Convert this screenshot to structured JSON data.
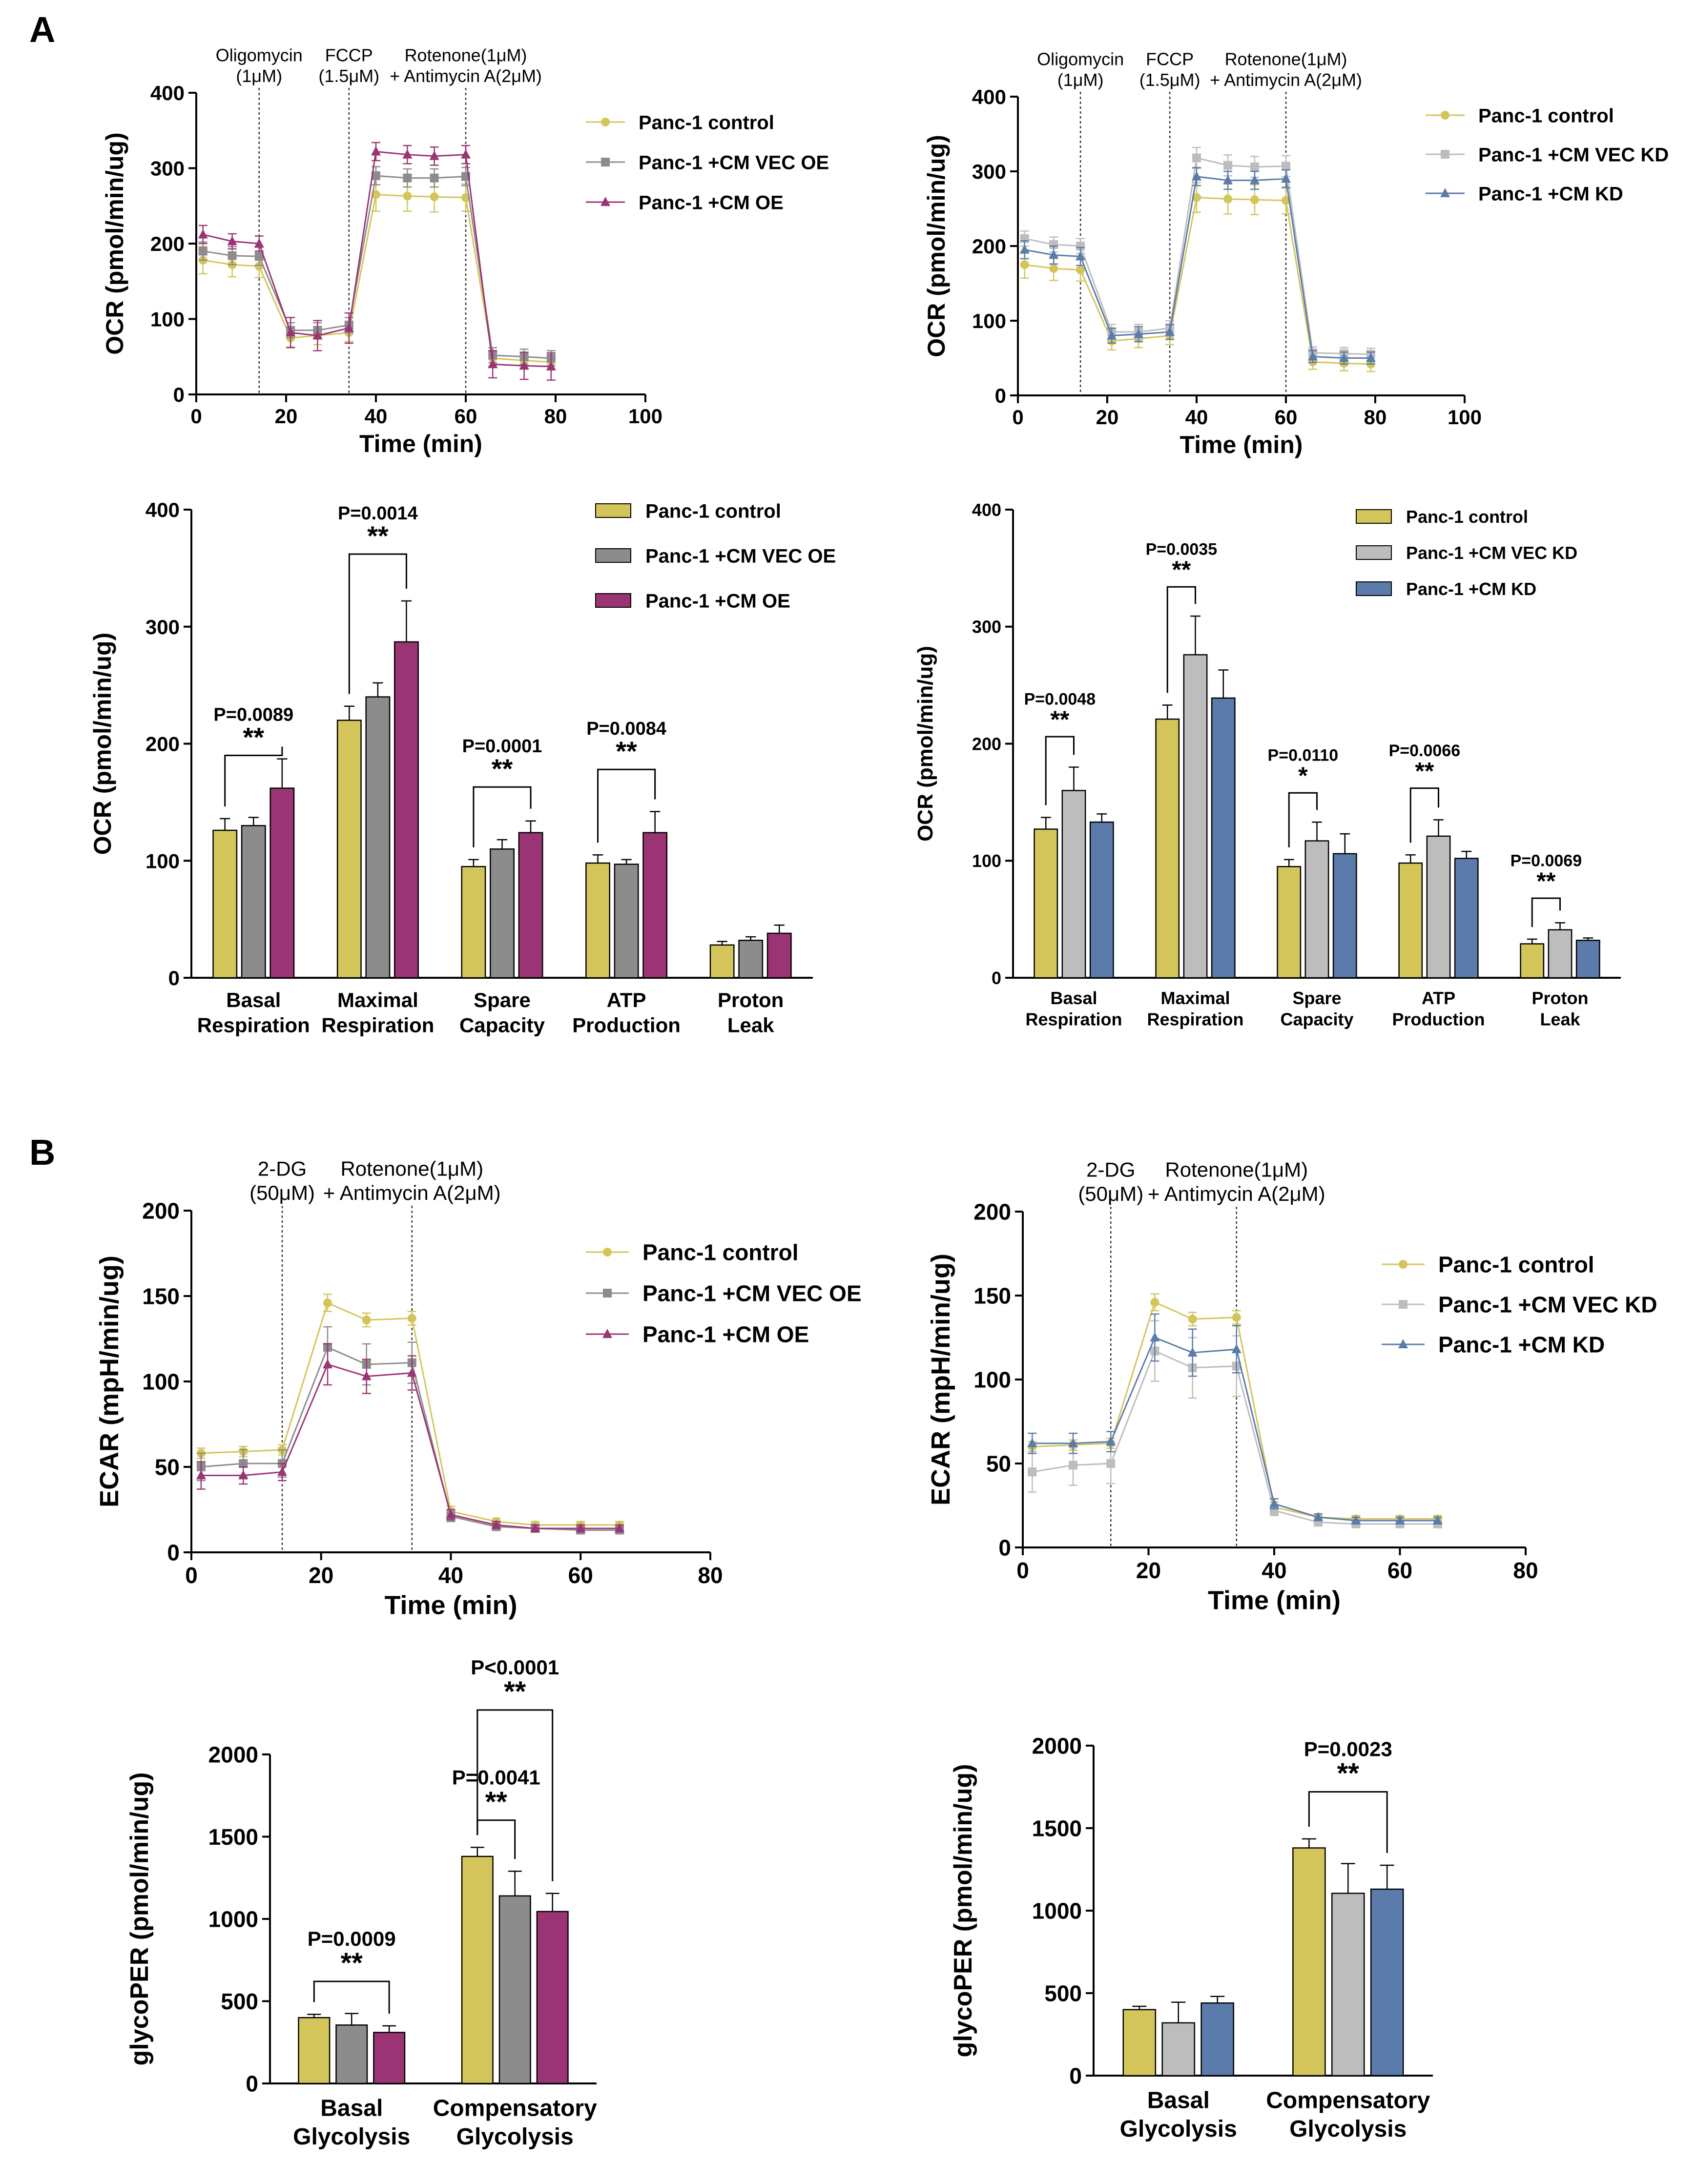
{
  "panels": {
    "a": "A",
    "b": "B"
  },
  "colors": {
    "control": "#d4c55a",
    "vec_oe": "#8c8c8c",
    "oe": "#9b3474",
    "vec_kd": "#bdbdbd",
    "kd": "#5b7bab",
    "axis": "#000000"
  },
  "chart_data": [
    {
      "id": "ocr_time_oe",
      "type": "line",
      "ylabel": "OCR (pmol/min/ug)",
      "xlabel": "Time (min)",
      "xlim": [
        0,
        100
      ],
      "ylim": [
        0,
        400
      ],
      "xticks": [
        0,
        20,
        40,
        60,
        80,
        100
      ],
      "yticks": [
        0,
        100,
        200,
        300,
        400
      ],
      "injections": [
        {
          "x": 14,
          "label": [
            "Oligomycin",
            "(1μM)"
          ]
        },
        {
          "x": 34,
          "label": [
            "FCCP",
            "(1.5μM)"
          ]
        },
        {
          "x": 60,
          "label": [
            "Rotenone(1μM)",
            "+ Antimycin A(2μM)"
          ]
        }
      ],
      "x": [
        1.5,
        8,
        14,
        21,
        27,
        34,
        40,
        47,
        53,
        60,
        66,
        73,
        79
      ],
      "series": [
        {
          "name": "Panc-1 control",
          "color_key": "control",
          "marker": "circle",
          "values": [
            178,
            172,
            170,
            75,
            78,
            82,
            265,
            263,
            262,
            261,
            48,
            45,
            43
          ],
          "errors": [
            18,
            16,
            15,
            12,
            12,
            12,
            22,
            20,
            20,
            18,
            10,
            10,
            10
          ]
        },
        {
          "name": "Panc-1 +CM VEC OE",
          "color_key": "vec_oe",
          "marker": "square",
          "values": [
            190,
            184,
            183,
            85,
            85,
            92,
            290,
            287,
            287,
            289,
            52,
            50,
            48
          ],
          "errors": [
            12,
            12,
            12,
            10,
            10,
            10,
            12,
            12,
            12,
            12,
            10,
            10,
            10
          ]
        },
        {
          "name": "Panc-1 +CM OE",
          "color_key": "oe",
          "marker": "triangle",
          "values": [
            212,
            203,
            200,
            82,
            78,
            88,
            322,
            318,
            316,
            318,
            40,
            38,
            37
          ],
          "errors": [
            12,
            10,
            10,
            20,
            20,
            20,
            12,
            12,
            12,
            12,
            18,
            18,
            18
          ]
        }
      ]
    },
    {
      "id": "ocr_time_kd",
      "type": "line",
      "ylabel": "OCR (pmol/min/ug)",
      "xlabel": "Time (min)",
      "xlim": [
        0,
        100
      ],
      "ylim": [
        0,
        400
      ],
      "xticks": [
        0,
        20,
        40,
        60,
        80,
        100
      ],
      "yticks": [
        0,
        100,
        200,
        300,
        400
      ],
      "injections": [
        {
          "x": 14,
          "label": [
            "Oligomycin",
            "(1μM)"
          ]
        },
        {
          "x": 34,
          "label": [
            "FCCP",
            "(1.5μM)"
          ]
        },
        {
          "x": 60,
          "label": [
            "Rotenone(1μM)",
            "+ Antimycin A(2μM)"
          ]
        }
      ],
      "x": [
        1.5,
        8,
        14,
        21,
        27,
        34,
        40,
        47,
        53,
        60,
        66,
        73,
        79
      ],
      "series": [
        {
          "name": "Panc-1 control",
          "color_key": "control",
          "marker": "circle",
          "values": [
            175,
            170,
            168,
            73,
            76,
            80,
            265,
            263,
            262,
            261,
            45,
            43,
            42
          ],
          "errors": [
            18,
            16,
            15,
            12,
            12,
            12,
            20,
            20,
            20,
            18,
            10,
            10,
            10
          ]
        },
        {
          "name": "Panc-1 +CM VEC KD",
          "color_key": "vec_kd",
          "marker": "square",
          "values": [
            210,
            202,
            200,
            85,
            85,
            90,
            318,
            308,
            306,
            307,
            57,
            56,
            55
          ],
          "errors": [
            10,
            10,
            10,
            10,
            10,
            10,
            14,
            14,
            14,
            14,
            8,
            8,
            8
          ]
        },
        {
          "name": "Panc-1 +CM KD",
          "color_key": "kd",
          "marker": "triangle",
          "values": [
            195,
            188,
            186,
            80,
            82,
            85,
            293,
            288,
            288,
            290,
            52,
            50,
            50
          ],
          "errors": [
            12,
            12,
            12,
            10,
            10,
            10,
            12,
            12,
            12,
            12,
            8,
            8,
            8
          ]
        }
      ]
    },
    {
      "id": "ocr_bar_oe",
      "type": "bar",
      "ylabel": "OCR (pmol/min/ug)",
      "ylim": [
        0,
        400
      ],
      "yticks": [
        0,
        100,
        200,
        300,
        400
      ],
      "categories": [
        [
          "Basal",
          "Respiration"
        ],
        [
          "Maximal",
          "Respiration"
        ],
        [
          "Spare",
          "Capacity"
        ],
        [
          "ATP",
          "Production"
        ],
        [
          "Proton",
          "Leak"
        ]
      ],
      "series": [
        {
          "name": "Panc-1 control",
          "color_key": "control",
          "values": [
            126,
            220,
            95,
            98,
            28
          ],
          "errors": [
            10,
            12,
            6,
            7,
            3
          ]
        },
        {
          "name": "Panc-1 +CM VEC OE",
          "color_key": "vec_oe",
          "values": [
            130,
            240,
            110,
            97,
            32
          ],
          "errors": [
            7,
            12,
            8,
            4,
            3
          ]
        },
        {
          "name": "Panc-1 +CM OE",
          "color_key": "oe",
          "values": [
            162,
            287,
            124,
            124,
            38
          ],
          "errors": [
            25,
            35,
            10,
            18,
            7
          ]
        }
      ],
      "annotations": [
        {
          "cat": 0,
          "from": 0,
          "to": 2,
          "bracket": 190,
          "p": "P=0.0089",
          "stars": "**"
        },
        {
          "cat": 1,
          "from": 0,
          "to": 2,
          "bracket": 362,
          "p": "P=0.0014",
          "stars": "**"
        },
        {
          "cat": 2,
          "from": 0,
          "to": 2,
          "bracket": 163,
          "p": "P=0.0001",
          "stars": "**"
        },
        {
          "cat": 3,
          "from": 0,
          "to": 2,
          "bracket": 178,
          "p": "P=0.0084",
          "stars": "**"
        }
      ]
    },
    {
      "id": "ocr_bar_kd",
      "type": "bar",
      "ylabel": "OCR (pmol/min/ug)",
      "ylim": [
        0,
        400
      ],
      "yticks": [
        0,
        100,
        200,
        300,
        400
      ],
      "categories": [
        [
          "Basal",
          "Respiration"
        ],
        [
          "Maximal",
          "Respiration"
        ],
        [
          "Spare",
          "Capacity"
        ],
        [
          "ATP",
          "Production"
        ],
        [
          "Proton",
          "Leak"
        ]
      ],
      "series": [
        {
          "name": "Panc-1 control",
          "color_key": "control",
          "values": [
            127,
            221,
            95,
            98,
            29
          ],
          "errors": [
            10,
            12,
            6,
            7,
            4
          ]
        },
        {
          "name": "Panc-1 +CM VEC KD",
          "color_key": "vec_kd",
          "values": [
            160,
            276,
            117,
            121,
            41
          ],
          "errors": [
            20,
            33,
            16,
            14,
            6
          ]
        },
        {
          "name": "Panc-1 +CM KD",
          "color_key": "kd",
          "values": [
            133,
            239,
            106,
            102,
            32
          ],
          "errors": [
            7,
            24,
            17,
            6,
            2
          ]
        }
      ],
      "annotations": [
        {
          "cat": 0,
          "from": 0,
          "to": 1,
          "bracket": 206,
          "p": "P=0.0048",
          "stars": "**"
        },
        {
          "cat": 1,
          "from": 0,
          "to": 1,
          "bracket": 334,
          "p": "P=0.0035",
          "stars": "**"
        },
        {
          "cat": 2,
          "from": 0,
          "to": 1,
          "bracket": 158,
          "p": "P=0.0110",
          "stars": "*"
        },
        {
          "cat": 3,
          "from": 0,
          "to": 1,
          "bracket": 162,
          "p": "P=0.0066",
          "stars": "**"
        },
        {
          "cat": 4,
          "from": 0,
          "to": 1,
          "bracket": 68,
          "p": "P=0.0069",
          "stars": "**"
        }
      ]
    },
    {
      "id": "ecar_time_oe",
      "type": "line",
      "ylabel": "ECAR (mpH/min/ug)",
      "xlabel": "Time (min)",
      "xlim": [
        0,
        80
      ],
      "ylim": [
        0,
        200
      ],
      "xticks": [
        0,
        20,
        40,
        60,
        80
      ],
      "yticks": [
        0,
        50,
        100,
        150,
        200
      ],
      "injections": [
        {
          "x": 14,
          "label": [
            "2-DG",
            "(50μM)"
          ]
        },
        {
          "x": 34,
          "label": [
            "Rotenone(1μM)",
            "+ Antimycin A(2μM)"
          ]
        }
      ],
      "x": [
        1.5,
        8,
        14,
        21,
        27,
        34,
        40,
        47,
        53,
        60,
        66
      ],
      "series": [
        {
          "name": "Panc-1 control",
          "color_key": "control",
          "marker": "circle",
          "values": [
            58,
            59,
            60,
            146,
            136,
            137,
            24,
            18,
            16,
            16,
            16
          ],
          "errors": [
            3,
            3,
            3,
            5,
            4,
            4,
            3,
            2,
            2,
            2,
            2
          ]
        },
        {
          "name": "Panc-1 +CM VEC OE",
          "color_key": "vec_oe",
          "marker": "square",
          "values": [
            50,
            52,
            52,
            120,
            110,
            111,
            21,
            15,
            14,
            13,
            13
          ],
          "errors": [
            8,
            8,
            8,
            12,
            12,
            12,
            3,
            2,
            2,
            2,
            2
          ]
        },
        {
          "name": "Panc-1 +CM OE",
          "color_key": "oe",
          "marker": "triangle",
          "values": [
            45,
            45,
            47,
            110,
            103,
            105,
            22,
            16,
            14,
            14,
            14
          ],
          "errors": [
            8,
            5,
            5,
            12,
            10,
            10,
            3,
            2,
            2,
            2,
            2
          ]
        }
      ]
    },
    {
      "id": "ecar_time_kd",
      "type": "line",
      "ylabel": "ECAR (mpH/min/ug)",
      "xlabel": "Time (min)",
      "xlim": [
        0,
        80
      ],
      "ylim": [
        0,
        200
      ],
      "xticks": [
        0,
        20,
        40,
        60,
        80
      ],
      "yticks": [
        0,
        50,
        100,
        150,
        200
      ],
      "injections": [
        {
          "x": 14,
          "label": [
            "2-DG",
            "(50μM)"
          ]
        },
        {
          "x": 34,
          "label": [
            "Rotenone(1μM)",
            "+ Antimycin A(2μM)"
          ]
        }
      ],
      "x": [
        1.5,
        8,
        14,
        21,
        27,
        34,
        40,
        47,
        53,
        60,
        66
      ],
      "series": [
        {
          "name": "Panc-1 control",
          "color_key": "control",
          "marker": "circle",
          "values": [
            60,
            61,
            62,
            146,
            136,
            137,
            24,
            18,
            17,
            17,
            17
          ],
          "errors": [
            3,
            3,
            3,
            5,
            4,
            4,
            3,
            2,
            2,
            2,
            2
          ]
        },
        {
          "name": "Panc-1 +CM VEC KD",
          "color_key": "vec_kd",
          "marker": "square",
          "values": [
            45,
            49,
            50,
            117,
            107,
            108,
            22,
            15,
            14,
            14,
            14
          ],
          "errors": [
            12,
            12,
            12,
            18,
            18,
            18,
            3,
            2,
            2,
            2,
            2
          ]
        },
        {
          "name": "Panc-1 +CM KD",
          "color_key": "kd",
          "marker": "triangle",
          "values": [
            62,
            62,
            63,
            125,
            116,
            118,
            26,
            18,
            16,
            16,
            16
          ],
          "errors": [
            6,
            6,
            6,
            14,
            14,
            14,
            3,
            2,
            2,
            2,
            2
          ]
        }
      ]
    },
    {
      "id": "glyco_bar_oe",
      "type": "bar",
      "ylabel": "glycoPER (pmol/min/ug)",
      "ylim": [
        0,
        2000
      ],
      "yticks": [
        0,
        500,
        1000,
        1500,
        2000
      ],
      "categories": [
        [
          "Basal",
          "Glycolysis"
        ],
        [
          "Compensatory",
          "Glycolysis"
        ]
      ],
      "series": [
        {
          "name": "Panc-1 control",
          "color_key": "control",
          "values": [
            400,
            1380
          ],
          "errors": [
            20,
            55
          ]
        },
        {
          "name": "Panc-1 +CM VEC OE",
          "color_key": "vec_oe",
          "values": [
            355,
            1140
          ],
          "errors": [
            70,
            150
          ]
        },
        {
          "name": "Panc-1 +CM OE",
          "color_key": "oe",
          "values": [
            310,
            1045
          ],
          "errors": [
            40,
            110
          ]
        }
      ],
      "annotations": [
        {
          "cat": 0,
          "from": 0,
          "to": 2,
          "bracket": 620,
          "p": "P=0.0009",
          "stars": "**"
        },
        {
          "cat": 1,
          "from": 0,
          "to": 1,
          "bracket": 1600,
          "p": "P=0.0041",
          "stars": "**"
        },
        {
          "cat": 1,
          "from": 0,
          "to": 2,
          "bracket": 2270,
          "p": "P<0.0001",
          "stars": "**"
        }
      ]
    },
    {
      "id": "glyco_bar_kd",
      "type": "bar",
      "ylabel": "glycoPER (pmol/min/ug)",
      "ylim": [
        0,
        2000
      ],
      "yticks": [
        0,
        500,
        1000,
        1500,
        2000
      ],
      "categories": [
        [
          "Basal",
          "Glycolysis"
        ],
        [
          "Compensatory",
          "Glycolysis"
        ]
      ],
      "series": [
        {
          "name": "Panc-1 control",
          "color_key": "control",
          "values": [
            400,
            1380
          ],
          "errors": [
            20,
            55
          ]
        },
        {
          "name": "Panc-1 +CM VEC KD",
          "color_key": "vec_kd",
          "values": [
            320,
            1105
          ],
          "errors": [
            125,
            180
          ]
        },
        {
          "name": "Panc-1 +CM KD",
          "color_key": "kd",
          "values": [
            440,
            1130
          ],
          "errors": [
            40,
            145
          ]
        }
      ],
      "annotations": [
        {
          "cat": 1,
          "from": 0,
          "to": 2,
          "bracket": 1720,
          "p": "P=0.0023",
          "stars": "**"
        }
      ]
    }
  ]
}
